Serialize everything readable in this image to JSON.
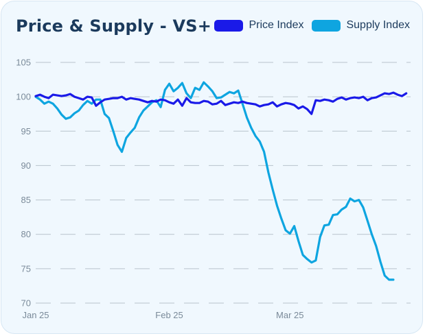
{
  "title": "Price & Supply - VS+",
  "legend": [
    {
      "name": "Price Index",
      "color": "#1a1ae8"
    },
    {
      "name": "Supply Index",
      "color": "#0ea5e0"
    }
  ],
  "chart_data": {
    "type": "line",
    "title": "Price & Supply - VS+",
    "xlabel": "",
    "ylabel": "",
    "ylim": [
      70,
      105
    ],
    "yticks": [
      70,
      75,
      80,
      85,
      90,
      95,
      100,
      105
    ],
    "xticks": [
      {
        "label": "Jan 25",
        "x": 0
      },
      {
        "label": "Feb 25",
        "x": 31
      },
      {
        "label": "Mar 25",
        "x": 59
      }
    ],
    "x_range": [
      0,
      87
    ],
    "grid": "horizontal dashed",
    "legend_position": "top-right",
    "series": [
      {
        "name": "Price Index",
        "color": "#1a1ae8",
        "points": [
          [
            0,
            100.1
          ],
          [
            1,
            100.3
          ],
          [
            2,
            100.0
          ],
          [
            3,
            99.8
          ],
          [
            4,
            100.3
          ],
          [
            5,
            100.2
          ],
          [
            6,
            100.1
          ],
          [
            7,
            100.2
          ],
          [
            8,
            100.4
          ],
          [
            9,
            100.0
          ],
          [
            10,
            99.8
          ],
          [
            11,
            99.6
          ],
          [
            12,
            100.0
          ],
          [
            13,
            99.9
          ],
          [
            14,
            98.7
          ],
          [
            15,
            99.2
          ],
          [
            16,
            99.6
          ],
          [
            17,
            99.7
          ],
          [
            18,
            99.8
          ],
          [
            19,
            99.8
          ],
          [
            20,
            100.0
          ],
          [
            21,
            99.6
          ],
          [
            22,
            99.8
          ],
          [
            23,
            99.7
          ],
          [
            24,
            99.6
          ],
          [
            25,
            99.4
          ],
          [
            26,
            99.2
          ],
          [
            27,
            99.4
          ],
          [
            28,
            99.3
          ],
          [
            29,
            99.6
          ],
          [
            30,
            99.5
          ],
          [
            31,
            99.2
          ],
          [
            32,
            99.0
          ],
          [
            33,
            99.6
          ],
          [
            34,
            98.7
          ],
          [
            35,
            99.8
          ],
          [
            36,
            99.2
          ],
          [
            37,
            99.1
          ],
          [
            38,
            99.1
          ],
          [
            39,
            99.4
          ],
          [
            40,
            99.3
          ],
          [
            41,
            98.9
          ],
          [
            42,
            99.0
          ],
          [
            43,
            99.4
          ],
          [
            44,
            98.8
          ],
          [
            45,
            99.0
          ],
          [
            46,
            99.2
          ],
          [
            47,
            99.1
          ],
          [
            48,
            99.3
          ],
          [
            49,
            99.1
          ],
          [
            50,
            99.0
          ],
          [
            51,
            98.9
          ],
          [
            52,
            98.6
          ],
          [
            53,
            98.8
          ],
          [
            54,
            98.9
          ],
          [
            55,
            99.2
          ],
          [
            56,
            98.6
          ],
          [
            57,
            98.9
          ],
          [
            58,
            99.1
          ],
          [
            59,
            99.0
          ],
          [
            60,
            98.8
          ],
          [
            61,
            98.3
          ],
          [
            62,
            98.6
          ],
          [
            63,
            98.2
          ],
          [
            64,
            97.5
          ],
          [
            65,
            99.5
          ],
          [
            66,
            99.4
          ],
          [
            67,
            99.6
          ],
          [
            68,
            99.5
          ],
          [
            69,
            99.3
          ],
          [
            70,
            99.7
          ],
          [
            71,
            99.9
          ],
          [
            72,
            99.6
          ],
          [
            73,
            99.8
          ],
          [
            74,
            99.9
          ],
          [
            75,
            99.8
          ],
          [
            76,
            100.0
          ],
          [
            77,
            99.5
          ],
          [
            78,
            99.8
          ],
          [
            79,
            99.9
          ],
          [
            80,
            100.2
          ],
          [
            81,
            100.5
          ],
          [
            82,
            100.4
          ],
          [
            83,
            100.6
          ],
          [
            84,
            100.3
          ],
          [
            85,
            100.1
          ],
          [
            86,
            100.5
          ]
        ]
      },
      {
        "name": "Supply Index",
        "color": "#0ea5e0",
        "points": [
          [
            0,
            100.0
          ],
          [
            1,
            99.6
          ],
          [
            2,
            99.0
          ],
          [
            3,
            99.3
          ],
          [
            4,
            99.0
          ],
          [
            5,
            98.3
          ],
          [
            6,
            97.4
          ],
          [
            7,
            96.8
          ],
          [
            8,
            97.0
          ],
          [
            9,
            97.6
          ],
          [
            10,
            98.0
          ],
          [
            11,
            98.8
          ],
          [
            12,
            99.4
          ],
          [
            13,
            99.0
          ],
          [
            14,
            99.6
          ],
          [
            15,
            99.6
          ],
          [
            16,
            97.5
          ],
          [
            17,
            96.9
          ],
          [
            18,
            95.0
          ],
          [
            19,
            93.0
          ],
          [
            20,
            92.0
          ],
          [
            21,
            94.0
          ],
          [
            22,
            94.8
          ],
          [
            23,
            95.5
          ],
          [
            24,
            97.0
          ],
          [
            25,
            98.0
          ],
          [
            26,
            98.6
          ],
          [
            27,
            99.2
          ],
          [
            28,
            99.5
          ],
          [
            29,
            98.5
          ],
          [
            30,
            101.0
          ],
          [
            31,
            101.9
          ],
          [
            32,
            100.8
          ],
          [
            33,
            101.3
          ],
          [
            34,
            102.0
          ],
          [
            35,
            100.5
          ],
          [
            36,
            99.8
          ],
          [
            37,
            101.3
          ],
          [
            38,
            101.0
          ],
          [
            39,
            102.1
          ],
          [
            40,
            101.5
          ],
          [
            41,
            100.8
          ],
          [
            42,
            99.8
          ],
          [
            43,
            99.9
          ],
          [
            44,
            100.3
          ],
          [
            45,
            100.7
          ],
          [
            46,
            100.5
          ],
          [
            47,
            100.9
          ],
          [
            48,
            99.0
          ],
          [
            49,
            97.0
          ],
          [
            50,
            95.5
          ],
          [
            51,
            94.3
          ],
          [
            52,
            93.5
          ],
          [
            53,
            92.0
          ],
          [
            54,
            89.0
          ],
          [
            55,
            86.5
          ],
          [
            56,
            84.2
          ],
          [
            57,
            82.3
          ],
          [
            58,
            80.6
          ],
          [
            59,
            80.1
          ],
          [
            60,
            81.2
          ],
          [
            61,
            79.0
          ],
          [
            62,
            77.0
          ],
          [
            63,
            76.4
          ],
          [
            64,
            75.9
          ],
          [
            65,
            76.2
          ],
          [
            66,
            79.6
          ],
          [
            67,
            81.3
          ],
          [
            68,
            81.4
          ],
          [
            69,
            82.8
          ],
          [
            70,
            82.9
          ],
          [
            71,
            83.6
          ],
          [
            72,
            84.0
          ],
          [
            73,
            85.2
          ],
          [
            74,
            84.8
          ],
          [
            75,
            85.0
          ],
          [
            76,
            83.9
          ],
          [
            77,
            82.0
          ],
          [
            78,
            80.0
          ],
          [
            79,
            78.3
          ],
          [
            80,
            76.0
          ],
          [
            81,
            74.0
          ],
          [
            82,
            73.4
          ],
          [
            83,
            73.4
          ]
        ]
      }
    ]
  }
}
